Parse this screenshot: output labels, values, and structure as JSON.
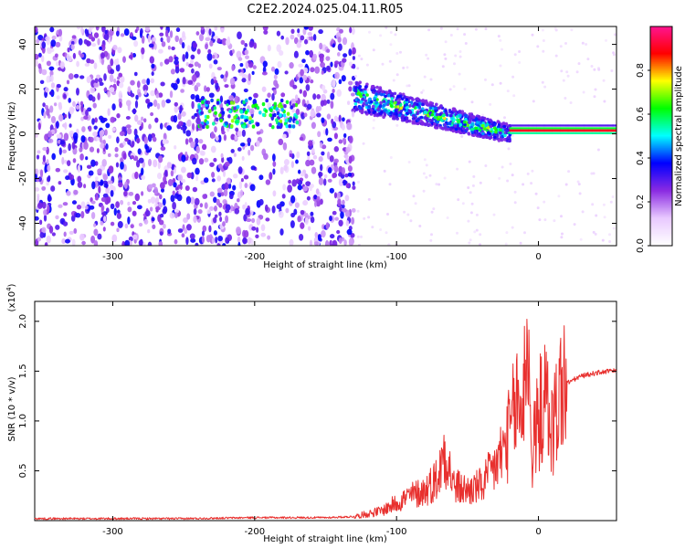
{
  "figure": {
    "title": "C2E2.2024.025.04.11.R05"
  },
  "chart_data": [
    {
      "type": "heatmap",
      "xlabel": "Height of straight line (km)",
      "ylabel": "Frequency (Hz)",
      "xlim": [
        -355,
        55
      ],
      "ylim": [
        -50,
        48
      ],
      "xticks": [
        -300,
        -200,
        -100,
        0
      ],
      "yticks": [
        -40,
        -20,
        0,
        20,
        40
      ],
      "grid": false,
      "colorbar": {
        "label": "Normalized spectral amplitude",
        "range": [
          0.0,
          1.0
        ],
        "ticks": [
          0.0,
          0.2,
          0.4,
          0.6,
          0.8
        ],
        "tick_labels": [
          "0.0",
          "0.2",
          "0.4",
          "0.6",
          "0.8"
        ],
        "colormap": [
          "#ffffff",
          "#e8c8ff",
          "#8a2be2",
          "#0000ff",
          "#00ffff",
          "#00ff00",
          "#ffff00",
          "#ff0000",
          "#ff1493"
        ]
      },
      "features": [
        {
          "x_range": [
            -355,
            -130
          ],
          "description_level": "noise",
          "amplitude": 0.3
        },
        {
          "x_range": [
            -240,
            -170
          ],
          "center_freq": 9,
          "amplitude": 0.45
        },
        {
          "x_range": [
            -130,
            -20
          ],
          "center_freq_start": 17,
          "center_freq_end": 0,
          "amplitude": 0.55
        },
        {
          "x_range": [
            -20,
            55
          ],
          "center_freq": 1.5,
          "amplitude": 0.9
        }
      ]
    },
    {
      "type": "line",
      "xlabel": "Height of straight line (km)",
      "ylabel": "SNR (10 * v/v)",
      "y_multiplier": "(x10",
      "y_multiplier_exp": "4",
      "y_multiplier_close": ")",
      "xlim": [
        -355,
        55
      ],
      "ylim": [
        0,
        2.2
      ],
      "xticks": [
        -300,
        -200,
        -100,
        0
      ],
      "yticks": [
        0.5,
        1.0,
        1.5,
        2.0
      ],
      "ytick_labels": [
        "0.5",
        "1.0",
        "1.5",
        "2.0"
      ],
      "grid": false,
      "series": [
        {
          "color": "#e8302e",
          "x": [
            -355,
            -300,
            -250,
            -200,
            -150,
            -130,
            -110,
            -100,
            -90,
            -80,
            -70,
            -66,
            -60,
            -50,
            -40,
            -30,
            -25,
            -20,
            -15,
            -10,
            -8,
            -5,
            0,
            5,
            10,
            15,
            20,
            30,
            40,
            50,
            55
          ],
          "y": [
            0.02,
            0.02,
            0.02,
            0.03,
            0.03,
            0.04,
            0.1,
            0.18,
            0.25,
            0.3,
            0.45,
            0.75,
            0.35,
            0.3,
            0.35,
            0.55,
            0.7,
            0.9,
            1.2,
            0.9,
            2.2,
            0.6,
            1.05,
            1.2,
            0.9,
            1.3,
            1.38,
            1.45,
            1.48,
            1.5,
            1.5
          ]
        }
      ]
    }
  ]
}
